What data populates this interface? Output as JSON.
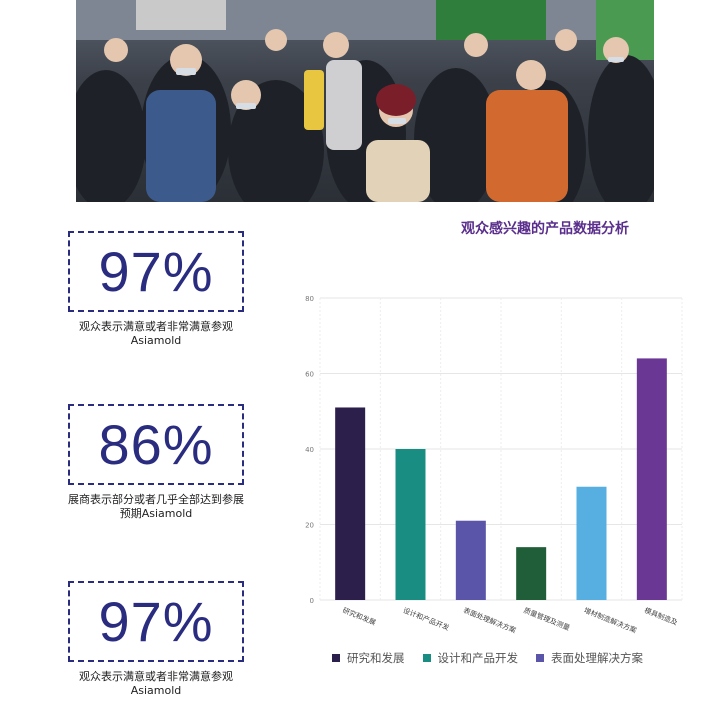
{
  "stats": [
    {
      "value": "97%",
      "caption_line1": "观众表示满意或者非常满意参观",
      "caption_line2": "Asiamold"
    },
    {
      "value": "86%",
      "caption_line1": "展商表示部分或者几乎全部达到参展",
      "caption_line2": "预期Asiamold"
    },
    {
      "value": "97%",
      "caption_line1": "观众表示满意或者非常满意参观",
      "caption_line2": "Asiamold"
    }
  ],
  "chart_data": {
    "type": "bar",
    "title": "观众感兴趣的产品数据分析",
    "categories": [
      "研究和发展",
      "设计和产品开发",
      "表面处理解决方案",
      "质量管理及测量",
      "增材制造解决方案",
      "模具制造及"
    ],
    "values": [
      51,
      40,
      21,
      14,
      30,
      64
    ],
    "colors": [
      "#2d1f4c",
      "#1a8d82",
      "#5a55a8",
      "#1f5e38",
      "#56afe0",
      "#6a3794"
    ],
    "ylim": [
      0,
      80
    ],
    "yticks": [
      0,
      20,
      40,
      60,
      80
    ],
    "grid": true,
    "legend": [
      {
        "label": "研究和发展",
        "color": "#2d1f4c"
      },
      {
        "label": "设计和产品开发",
        "color": "#1a8d82"
      },
      {
        "label": "表面处理解决方案",
        "color": "#5a55a8"
      }
    ]
  }
}
